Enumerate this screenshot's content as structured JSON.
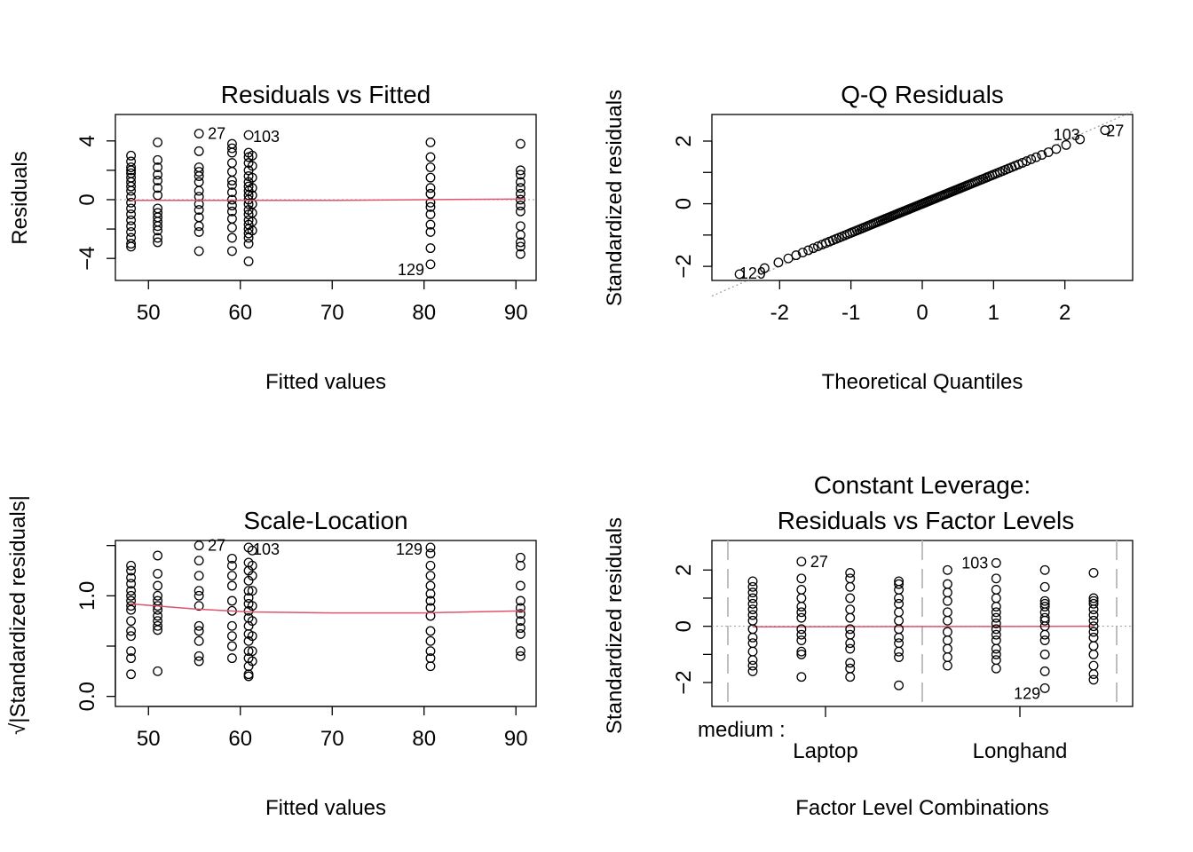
{
  "colors": {
    "points": "#000000",
    "smooth": "#DF536B",
    "reference": "#999999",
    "divider": "#bebebe"
  },
  "chart_data": [
    {
      "type": "scatter",
      "title": "Residuals vs Fitted",
      "xlabel": "Fitted values",
      "ylabel": "Residuals",
      "xlim": [
        46.4,
        92.2
      ],
      "ylim": [
        -5.5,
        5.8
      ],
      "xticks": [
        50,
        60,
        70,
        80,
        90
      ],
      "yticks": [
        -4,
        0,
        4
      ],
      "grid": false,
      "reference_line": {
        "y": 0,
        "style": "dotted"
      },
      "groups": [
        {
          "x": 48.1,
          "y": [
            3.0,
            2.6,
            2.2,
            2.0,
            1.8,
            1.5,
            1.2,
            0.9,
            0.6,
            0.2,
            -0.2,
            -0.6,
            -1.0,
            -1.4,
            -1.8,
            -2.2,
            -2.6,
            -3.0,
            -3.2
          ]
        },
        {
          "x": 51.0,
          "y": [
            3.9,
            2.7,
            2.2,
            1.7,
            1.3,
            0.8,
            0.3,
            -0.6,
            -0.9,
            -1.2,
            -1.5,
            -1.8,
            -2.1,
            -2.6,
            -2.9
          ]
        },
        {
          "x": 55.5,
          "y": [
            4.5,
            3.3,
            2.2,
            1.9,
            1.6,
            1.2,
            0.6,
            0.2,
            -0.3,
            -0.7,
            -1.2,
            -1.8,
            -2.2,
            -3.5
          ]
        },
        {
          "x": 59.1,
          "y": [
            3.8,
            3.5,
            3.2,
            2.5,
            1.9,
            1.3,
            1.0,
            0.5,
            0.0,
            -0.4,
            -0.8,
            -1.3,
            -1.9,
            -2.6,
            -3.5
          ]
        },
        {
          "x": 60.9,
          "y": [
            4.4,
            3.2,
            2.9,
            2.5,
            2.0,
            1.6,
            1.2,
            0.9,
            0.6,
            0.3,
            0.0,
            -0.3,
            -0.7,
            -1.0,
            -1.4,
            -1.7,
            -2.0,
            -2.3,
            -2.6,
            -3.0,
            -4.2
          ]
        },
        {
          "x": 61.3,
          "y": [
            3.0,
            2.3,
            1.5,
            0.8,
            0.3,
            -0.3,
            -0.9,
            -1.5,
            -2.1
          ]
        },
        {
          "x": 80.7,
          "y": [
            3.9,
            2.9,
            2.2,
            1.5,
            0.8,
            0.4,
            -0.2,
            -0.5,
            -1.0,
            -1.7,
            -2.2,
            -3.3,
            -4.4
          ]
        },
        {
          "x": 90.5,
          "y": [
            3.8,
            2.0,
            1.7,
            1.2,
            0.8,
            0.4,
            0.0,
            -0.4,
            -0.8,
            -1.8,
            -2.4,
            -2.9,
            -3.2,
            -3.7
          ]
        }
      ],
      "smooth_line": {
        "x": [
          48,
          55,
          61,
          70,
          80,
          91
        ],
        "y": [
          -0.05,
          -0.05,
          -0.05,
          -0.05,
          0.0,
          0.05
        ]
      },
      "labels": [
        {
          "text": "27",
          "x": 55.5,
          "y": 4.5
        },
        {
          "text": "103",
          "x": 60.9,
          "y": 4.4
        },
        {
          "text": "129",
          "x": 80.7,
          "y": -4.4
        }
      ]
    },
    {
      "type": "scatter",
      "title": "Q-Q Residuals",
      "xlabel": "Theoretical Quantiles",
      "ylabel": "Standardized residuals",
      "xlim": [
        -2.95,
        2.95
      ],
      "ylim": [
        -2.45,
        2.85
      ],
      "xticks": [
        -2,
        -1,
        0,
        1,
        2
      ],
      "yticks": [
        -2,
        0,
        2
      ],
      "grid": false,
      "reference_line": {
        "from": [
          -2.95,
          -2.95
        ],
        "to": [
          2.95,
          2.95
        ],
        "style": "dotted"
      },
      "n_points": 120,
      "y_range": [
        -2.25,
        2.35
      ],
      "labels": [
        {
          "text": "129",
          "x": -2.74,
          "y": -2.23
        },
        {
          "text": "103",
          "x": 2.3,
          "y": 2.25
        },
        {
          "text": "27",
          "x": 2.58,
          "y": 2.33
        }
      ]
    },
    {
      "type": "scatter",
      "title": "Scale-Location",
      "xlabel": "Fitted values",
      "ylabel": "√|Standardized residuals|",
      "xlim": [
        46.4,
        92.2
      ],
      "ylim": [
        -0.1,
        1.55
      ],
      "xticks": [
        50,
        60,
        70,
        80,
        90
      ],
      "yticks": [
        0.0,
        1.0
      ],
      "ytick_labels": [
        "0.0",
        "1.0"
      ],
      "grid": false,
      "groups": [
        {
          "x": 48.1,
          "y": [
            1.3,
            1.25,
            1.18,
            1.12,
            1.05,
            1.0,
            0.95,
            0.9,
            0.86,
            0.75,
            0.65,
            0.6,
            0.45,
            0.38,
            0.22
          ]
        },
        {
          "x": 51.0,
          "y": [
            1.4,
            1.22,
            1.1,
            1.0,
            0.95,
            0.9,
            0.86,
            0.8,
            0.75,
            0.7,
            0.66,
            0.25
          ]
        },
        {
          "x": 55.5,
          "y": [
            1.5,
            1.35,
            1.2,
            1.05,
            1.0,
            0.9,
            0.7,
            0.65,
            0.55,
            0.4,
            0.35
          ]
        },
        {
          "x": 59.1,
          "y": [
            1.37,
            1.3,
            1.2,
            1.1,
            0.95,
            0.85,
            0.7,
            0.6,
            0.5,
            0.38
          ]
        },
        {
          "x": 60.9,
          "y": [
            1.48,
            1.33,
            1.25,
            1.15,
            1.05,
            0.98,
            0.92,
            0.85,
            0.78,
            0.7,
            0.62,
            0.55,
            0.45,
            0.38,
            0.3,
            0.22,
            0.2
          ]
        },
        {
          "x": 61.3,
          "y": [
            1.45,
            1.3,
            1.2,
            1.05,
            0.9,
            0.75,
            0.6,
            0.45,
            0.35
          ]
        },
        {
          "x": 80.7,
          "y": [
            1.48,
            1.42,
            1.3,
            1.2,
            1.1,
            1.02,
            0.95,
            0.88,
            0.8,
            0.65,
            0.55,
            0.45,
            0.38,
            0.3
          ]
        },
        {
          "x": 90.5,
          "y": [
            1.38,
            1.3,
            1.1,
            0.95,
            0.88,
            0.82,
            0.75,
            0.68,
            0.62,
            0.45,
            0.4
          ]
        }
      ],
      "smooth_line": {
        "x": [
          48,
          55,
          61,
          70,
          80,
          85,
          91
        ],
        "y": [
          0.92,
          0.87,
          0.84,
          0.83,
          0.83,
          0.84,
          0.85
        ]
      },
      "labels": [
        {
          "text": "27",
          "x": 55.5,
          "y": 1.5
        },
        {
          "text": "103",
          "x": 60.9,
          "y": 1.48
        },
        {
          "text": "129",
          "x": 80.7,
          "y": 1.48
        }
      ]
    },
    {
      "type": "scatter",
      "title": "Constant Leverage:",
      "subtitle": "Residuals vs Factor Levels",
      "xlabel": "Factor Level Combinations",
      "ylabel": "Standardized residuals",
      "ylim": [
        -2.85,
        3.05
      ],
      "yticks": [
        -2,
        0,
        2
      ],
      "grid": false,
      "reference_line": {
        "y": 0,
        "style": "dotted"
      },
      "factor_prefix": "medium :",
      "factor_levels": [
        "Laptop",
        "Longhand"
      ],
      "n_level_groups": 8,
      "groups": [
        {
          "y": [
            1.6,
            1.4,
            1.2,
            1.0,
            0.8,
            0.6,
            0.4,
            0.2,
            -0.1,
            -0.4,
            -0.6,
            -0.9,
            -1.2,
            -1.4,
            -1.6
          ]
        },
        {
          "y": [
            2.3,
            1.7,
            1.3,
            1.0,
            0.7,
            0.5,
            0.3,
            -0.1,
            -0.3,
            -0.5,
            -0.9,
            -1.0,
            -1.8
          ]
        },
        {
          "y": [
            1.9,
            1.7,
            1.4,
            1.0,
            0.6,
            0.3,
            -0.1,
            -0.3,
            -0.6,
            -0.8,
            -1.3,
            -1.5,
            -1.8
          ]
        },
        {
          "y": [
            1.6,
            1.5,
            1.3,
            1.0,
            0.8,
            0.5,
            0.2,
            -0.1,
            -0.4,
            -0.6,
            -0.9,
            -1.1,
            -2.1
          ]
        },
        {
          "y": [
            2.0,
            1.5,
            1.2,
            0.9,
            0.5,
            0.2,
            -0.2,
            -0.5,
            -0.8,
            -1.1,
            -1.4
          ]
        },
        {
          "y": [
            2.25,
            1.7,
            1.3,
            1.0,
            0.7,
            0.5,
            0.3,
            0.1,
            -0.1,
            -0.3,
            -0.5,
            -0.8,
            -1.0,
            -1.2,
            -1.5
          ]
        },
        {
          "y": [
            2.0,
            1.4,
            0.9,
            0.8,
            0.7,
            0.5,
            0.3,
            0.2,
            0.0,
            -0.3,
            -0.5,
            -1.0,
            -1.6,
            -2.2
          ]
        },
        {
          "y": [
            1.9,
            1.0,
            0.9,
            0.8,
            0.6,
            0.4,
            0.2,
            0.0,
            -0.2,
            -0.4,
            -0.7,
            -1.0,
            -1.4,
            -1.7,
            -1.9
          ]
        }
      ],
      "labels": [
        {
          "text": "27",
          "group": 1,
          "y": 2.3
        },
        {
          "text": "103",
          "group": 5,
          "y": 2.25
        },
        {
          "text": "129",
          "group": 6,
          "y": -2.2
        }
      ]
    }
  ]
}
